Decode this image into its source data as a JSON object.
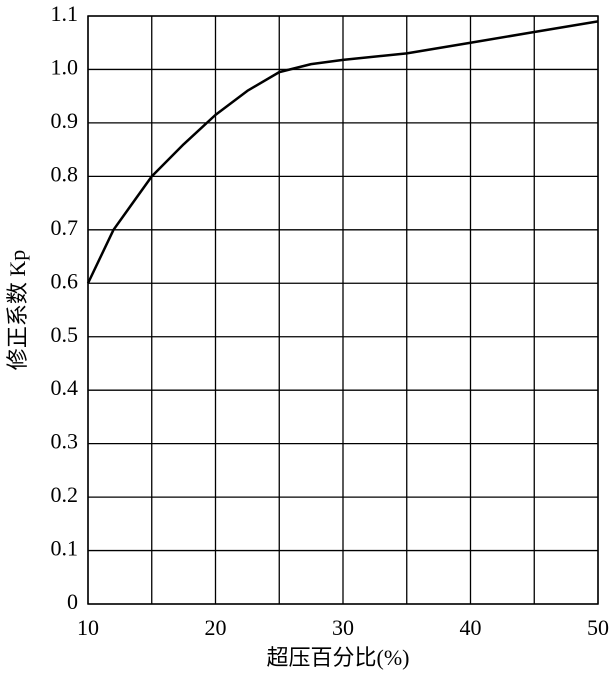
{
  "chart_data": {
    "type": "line",
    "x_label": "超压百分比(%)",
    "y_label": "修正系数 Kp",
    "x": [
      10,
      12,
      15,
      17.5,
      20,
      22.5,
      25,
      27.5,
      30,
      35,
      40,
      45,
      50
    ],
    "series": [
      {
        "color": "#000000",
        "values": [
          0.6,
          0.7,
          0.8,
          0.86,
          0.915,
          0.96,
          0.995,
          1.01,
          1.018,
          1.03,
          1.05,
          1.07,
          1.09
        ]
      }
    ],
    "xlim": [
      10,
      50
    ],
    "xticks": [
      10,
      20,
      30,
      40,
      50
    ],
    "x_minor_grid": [
      15,
      25,
      35,
      45
    ],
    "ylim": [
      0,
      1.1
    ],
    "yticks": [
      0,
      0.1,
      0.2,
      0.3,
      0.4,
      0.5,
      0.6,
      0.7,
      0.8,
      0.9,
      {
        "value": 1,
        "label": "1.0"
      },
      1.1
    ],
    "grid": true
  }
}
